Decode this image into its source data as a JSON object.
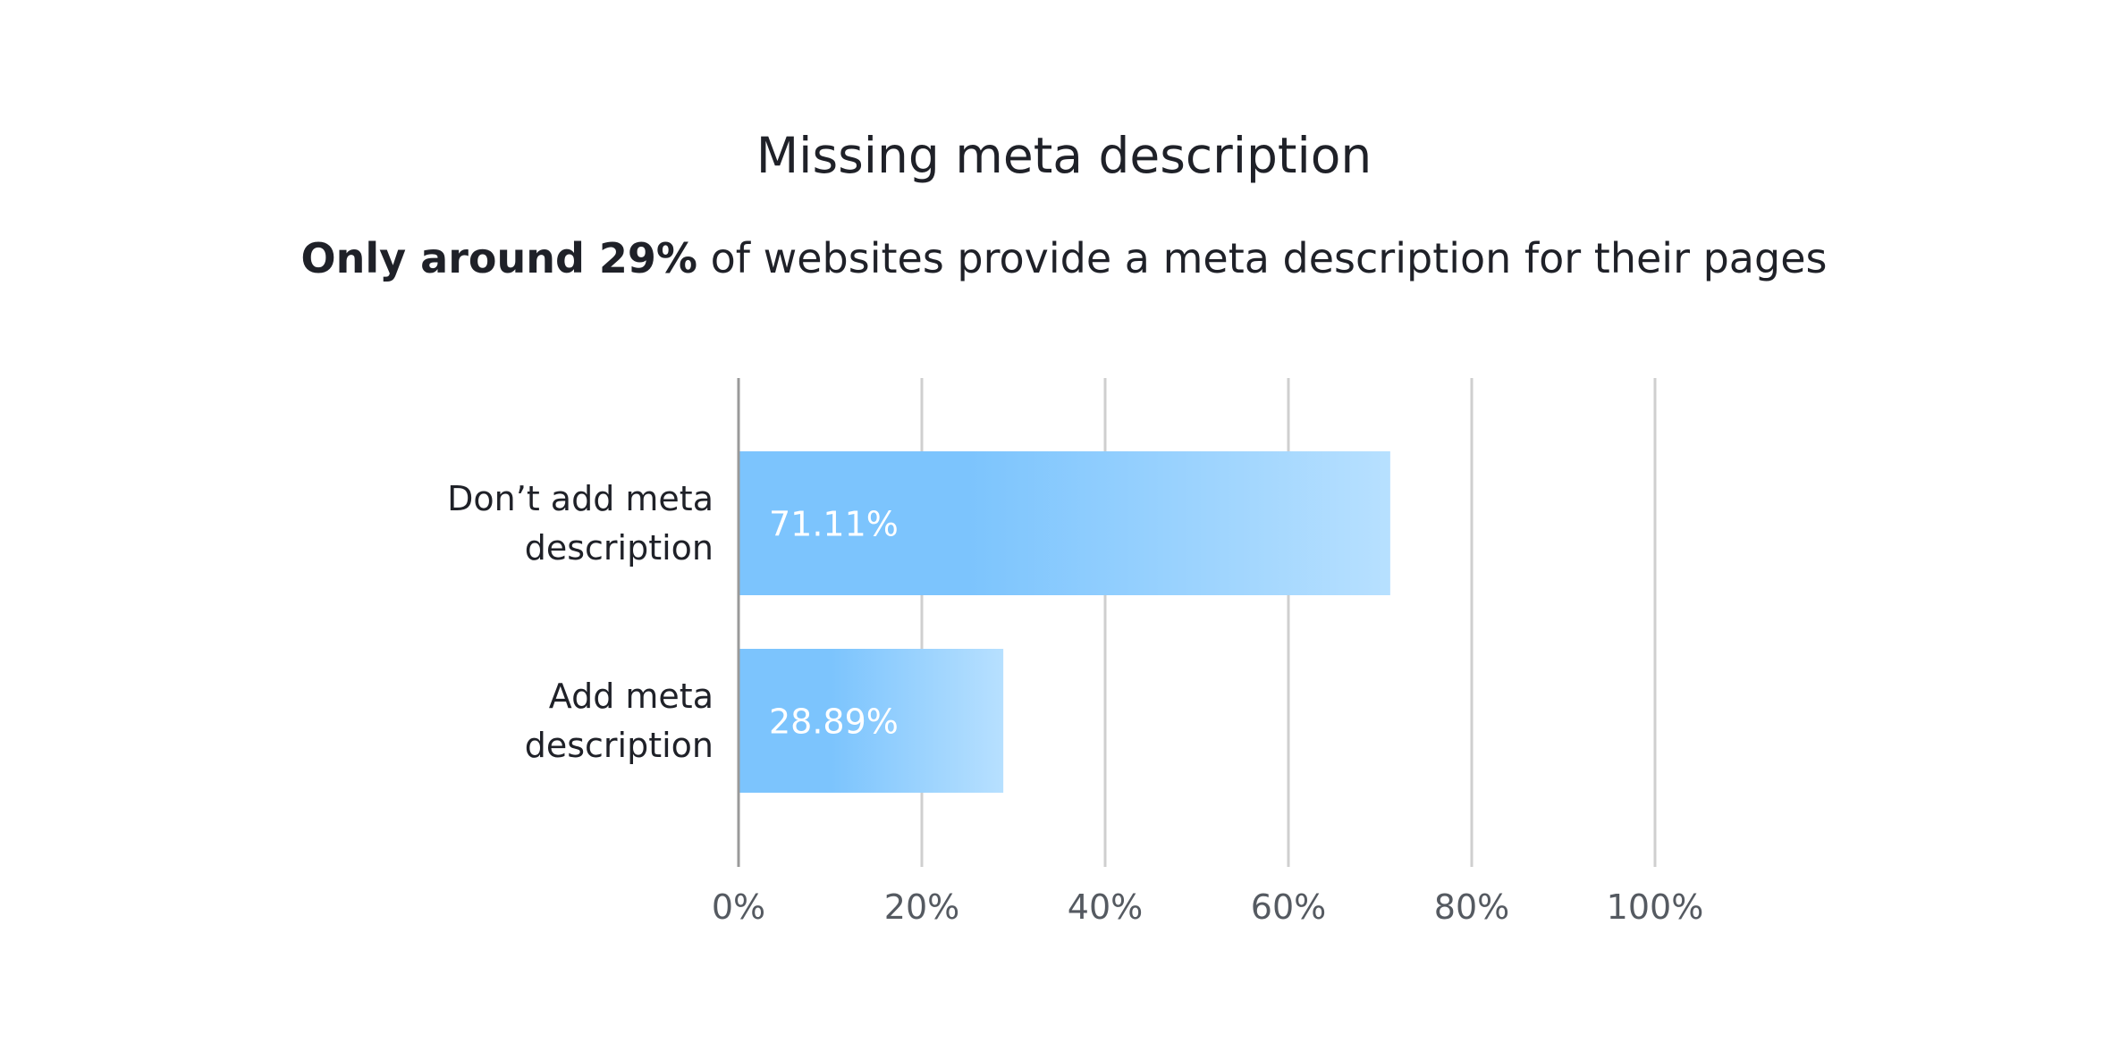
{
  "chart_data": {
    "type": "bar",
    "orientation": "horizontal",
    "title": "Missing meta description",
    "subtitle": {
      "bold": "Only around 29%",
      "rest": " of websites provide a meta description for their pages"
    },
    "categories": [
      [
        "Don’t add meta",
        "description"
      ],
      [
        "Add meta",
        "description"
      ]
    ],
    "values": [
      71.11,
      28.89
    ],
    "data_labels": [
      "71.11%",
      "28.89%"
    ],
    "x_ticks": [
      0,
      20,
      40,
      60,
      80,
      100
    ],
    "x_tick_labels": [
      "0%",
      "20%",
      "40%",
      "60%",
      "80%",
      "100%"
    ],
    "xlim": [
      0,
      100
    ],
    "grid": true,
    "legend": "none",
    "colors": {
      "bar_start": "#7cc4fd",
      "bar_end": "#b7e0ff",
      "grid": "#cfcfcf",
      "axis": "#9a9a9a"
    }
  }
}
